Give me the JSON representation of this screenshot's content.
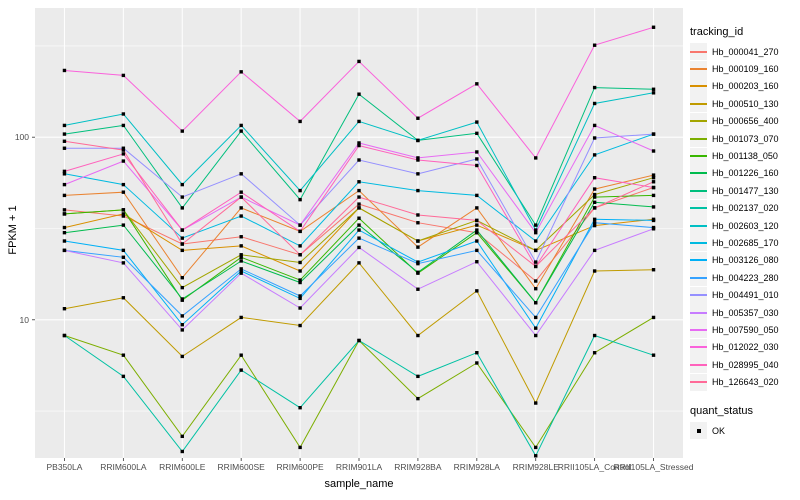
{
  "figure": {
    "y_axis_title": "FPKM + 1",
    "x_axis_title": "sample_name",
    "panel_bg": "#EBEBEB",
    "gridline_color": "#FFFFFF",
    "tick_label_color": "#4D4D4D",
    "legend": {
      "tracking_title": "tracking_id",
      "quant_title": "quant_status",
      "quant_items": [
        {
          "label": "OK",
          "marker": "black-square"
        }
      ]
    }
  },
  "chart_data": {
    "type": "line",
    "title": "",
    "xlabel": "sample_name",
    "ylabel": "FPKM + 1",
    "y_scale": "log10",
    "ylim": [
      1.75,
      510
    ],
    "y_ticks": [
      {
        "value": 10,
        "label": "10"
      },
      {
        "value": 100,
        "label": "100"
      }
    ],
    "y_minor": [
      3.1623,
      31.6228,
      316.228
    ],
    "grid": true,
    "legend_position": "right",
    "marker": "square",
    "marker_color": "#000000",
    "x_categories": [
      "PB350LA",
      "RRIM600LA",
      "RRIM600LE",
      "RRIM600SE",
      "RRIM600PE",
      "RRIM901LA",
      "RRIM928BA",
      "RRIM928LA",
      "RRIM928LE",
      "RRII105LA_Control",
      "RRII105LA_Stressed"
    ],
    "series": [
      {
        "name": "Hb_000041_270",
        "color": "#F8766D",
        "values": [
          40,
          37,
          26,
          28.5,
          22.7,
          43,
          34,
          30,
          16.3,
          41,
          53
        ]
      },
      {
        "name": "Hb_000109_160",
        "color": "#EA8331",
        "values": [
          48,
          50,
          17,
          41,
          30.5,
          51,
          25,
          41,
          14.8,
          52,
          62
        ]
      },
      {
        "name": "Hb_000203_160",
        "color": "#D89000",
        "values": [
          32,
          38,
          24,
          25.4,
          18.5,
          41,
          27,
          33,
          24,
          32.8,
          35.5
        ]
      },
      {
        "name": "Hb_000510_130",
        "color": "#C09B00",
        "values": [
          11.5,
          13.2,
          6.3,
          10.3,
          9.3,
          20.5,
          8.2,
          14.4,
          3.5,
          18.5,
          18.8
        ]
      },
      {
        "name": "Hb_000656_400",
        "color": "#A3A500",
        "values": [
          38,
          40,
          15,
          22.7,
          20.6,
          41,
          27,
          35,
          24,
          48.5,
          60
        ]
      },
      {
        "name": "Hb_001073_070",
        "color": "#7CAE00",
        "values": [
          8.2,
          6.4,
          2.3,
          6.4,
          2.0,
          7.7,
          3.7,
          5.8,
          2.0,
          6.6,
          10.3
        ]
      },
      {
        "name": "Hb_001138_050",
        "color": "#39B600",
        "values": [
          38,
          40,
          12.8,
          22,
          16.5,
          36,
          18,
          30,
          12.4,
          47,
          48
        ]
      },
      {
        "name": "Hb_001226_160",
        "color": "#00BB4E",
        "values": [
          30,
          33,
          13,
          21,
          16,
          33,
          18.2,
          31,
          12.4,
          44,
          41.5
        ]
      },
      {
        "name": "Hb_001477_130",
        "color": "#00BF7D",
        "values": [
          104,
          116,
          41,
          108,
          45.5,
          172,
          96,
          105,
          33,
          187,
          183
        ]
      },
      {
        "name": "Hb_002137_020",
        "color": "#00C1A3",
        "values": [
          8.2,
          4.9,
          1.9,
          5.3,
          3.3,
          7.7,
          4.9,
          6.6,
          1.8,
          8.2,
          6.4
        ]
      },
      {
        "name": "Hb_002603_120",
        "color": "#00BFC4",
        "values": [
          116,
          134,
          55,
          116,
          51,
          122,
          96,
          121,
          31,
          153,
          175
        ]
      },
      {
        "name": "Hb_002685_170",
        "color": "#00BAE0",
        "values": [
          63,
          55,
          28,
          37,
          25.4,
          57,
          51,
          48,
          27,
          80,
          104
        ]
      },
      {
        "name": "Hb_003126_080",
        "color": "#00B0F6",
        "values": [
          27,
          24,
          9.4,
          18.5,
          13.1,
          31,
          20.7,
          27,
          9.0,
          35.5,
          35
        ]
      },
      {
        "name": "Hb_004223_280",
        "color": "#35A2FF",
        "values": [
          24,
          22,
          10.5,
          19,
          13.5,
          28,
          20.3,
          24,
          10.3,
          34,
          32
        ]
      },
      {
        "name": "Hb_004491_010",
        "color": "#9590FF",
        "values": [
          87,
          87,
          47,
          63,
          33,
          75,
          63,
          76,
          20.7,
          99,
          104
        ]
      },
      {
        "name": "Hb_005357_030",
        "color": "#C77CFF",
        "values": [
          24,
          20.5,
          8.8,
          18,
          11.6,
          24.9,
          14.7,
          20.8,
          8.2,
          24,
          31.5
        ]
      },
      {
        "name": "Hb_007590_050",
        "color": "#E76BF3",
        "values": [
          55,
          74,
          31,
          47,
          33,
          93,
          77,
          83,
          30,
          116,
          84
        ]
      },
      {
        "name": "Hb_012022_030",
        "color": "#FA62DB",
        "values": [
          232,
          218,
          108,
          228,
          122,
          260,
          127,
          196,
          77,
          319,
          400
        ]
      },
      {
        "name": "Hb_028995_040",
        "color": "#FF62BC",
        "values": [
          65,
          81,
          31,
          50,
          30.5,
          90,
          75,
          70,
          19.6,
          60,
          53
        ]
      },
      {
        "name": "Hb_126643_020",
        "color": "#FF6A98",
        "values": [
          95,
          85,
          26,
          47,
          22.7,
          47,
          37.5,
          35,
          19.6,
          41,
          57
        ]
      }
    ]
  }
}
